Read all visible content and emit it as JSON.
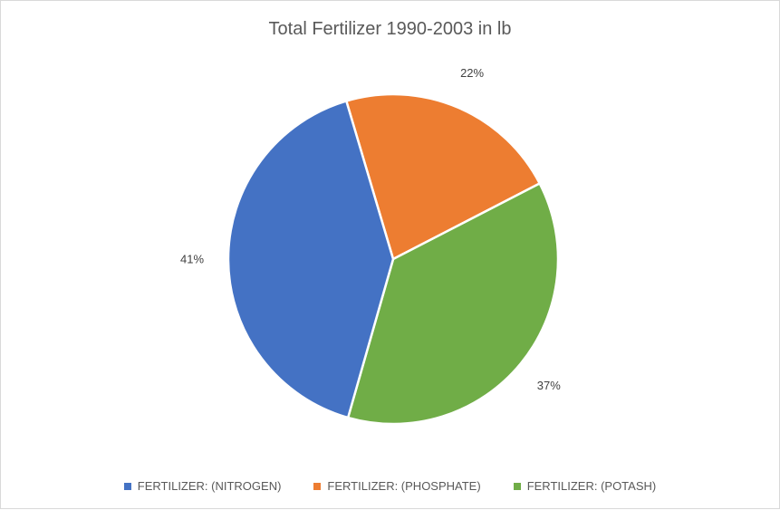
{
  "chart_data": {
    "type": "pie",
    "title": "Total Fertilizer 1990-2003 in lb",
    "slices": [
      {
        "label": "FERTILIZER: (PHOSPHATE)",
        "value": 22,
        "display": "22%",
        "color": "#ED7D31"
      },
      {
        "label": "FERTILIZER: (POTASH)",
        "value": 37,
        "display": "37%",
        "color": "#70AD47"
      },
      {
        "label": "FERTILIZER: (NITROGEN)",
        "value": 41,
        "display": "41%",
        "color": "#4472C4"
      }
    ],
    "legend": [
      {
        "label": "FERTILIZER: (NITROGEN)",
        "color": "#4472C4"
      },
      {
        "label": "FERTILIZER: (PHOSPHATE)",
        "color": "#ED7D31"
      },
      {
        "label": "FERTILIZER: (POTASH)",
        "color": "#70AD47"
      }
    ],
    "legend_position": "bottom"
  }
}
